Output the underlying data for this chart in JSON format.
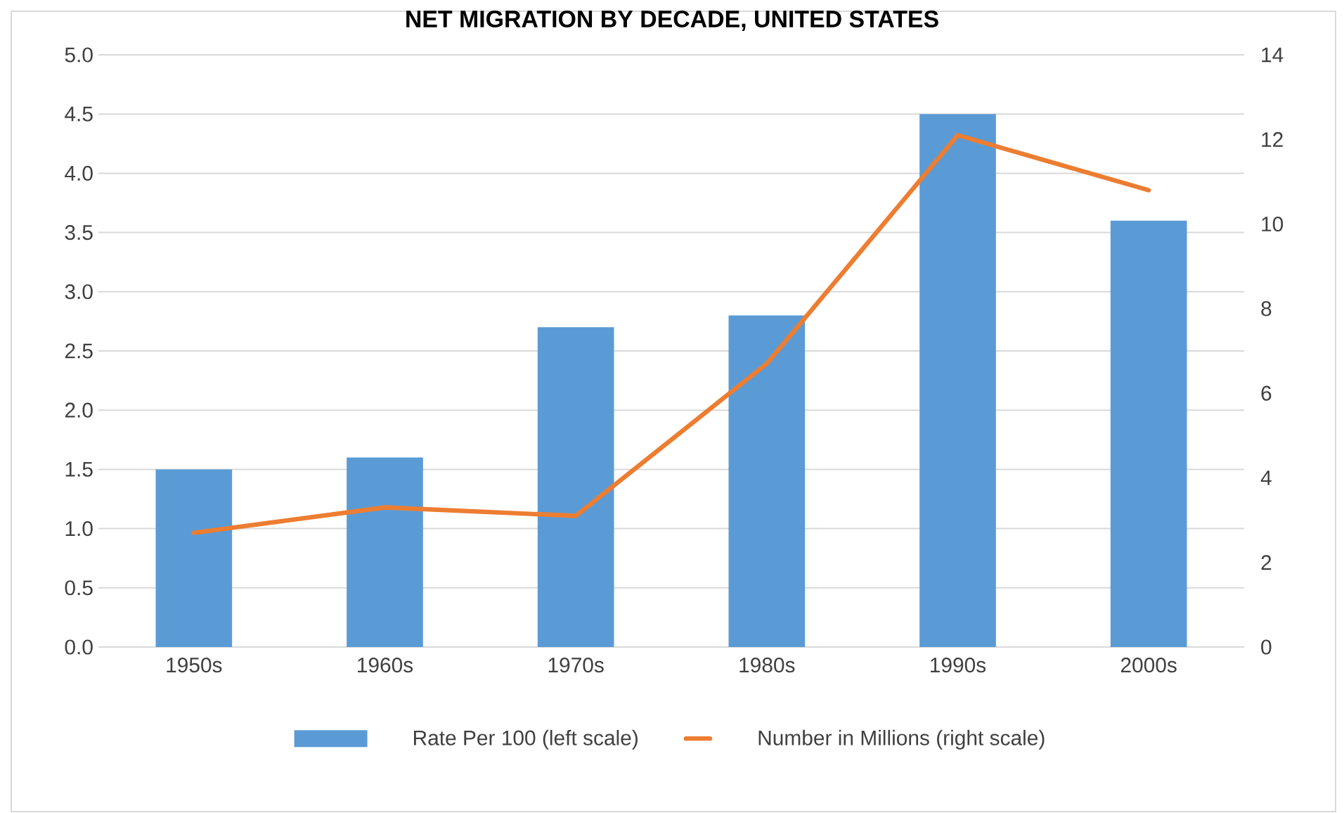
{
  "chart_data": {
    "type": "bar",
    "title": "NET MIGRATION BY DECADE, UNITED STATES",
    "categories": [
      "1950s",
      "1960s",
      "1970s",
      "1980s",
      "1990s",
      "2000s"
    ],
    "series": [
      {
        "name": "Rate Per 100 (left scale)",
        "color": "#5b9bd5",
        "values": [
          1.5,
          1.6,
          2.7,
          2.8,
          4.5,
          3.6
        ]
      },
      {
        "name": "Number in Millions (right scale)",
        "type": "line",
        "axis": "y2",
        "color": "#ed7d31",
        "values": [
          2.7,
          3.3,
          3.1,
          6.7,
          12.1,
          10.8
        ]
      }
    ],
    "ylim": [
      0,
      5
    ],
    "yticks": [
      {
        "value": 0,
        "label": "0.0"
      },
      {
        "value": 0.5,
        "label": "0.5"
      },
      {
        "value": 1,
        "label": "1.0"
      },
      {
        "value": 1.5,
        "label": "1.5"
      },
      {
        "value": 2,
        "label": "2.0"
      },
      {
        "value": 2.5,
        "label": "2.5"
      },
      {
        "value": 3,
        "label": "3.0"
      },
      {
        "value": 3.5,
        "label": "3.5"
      },
      {
        "value": 4,
        "label": "4.0"
      },
      {
        "value": 4.5,
        "label": "4.5"
      },
      {
        "value": 5,
        "label": "5.0"
      }
    ],
    "y2lim": [
      0,
      14
    ],
    "y2ticks": [
      0,
      2,
      4,
      6,
      8,
      10,
      12,
      14
    ],
    "grid": "y",
    "legend": "bottom"
  }
}
